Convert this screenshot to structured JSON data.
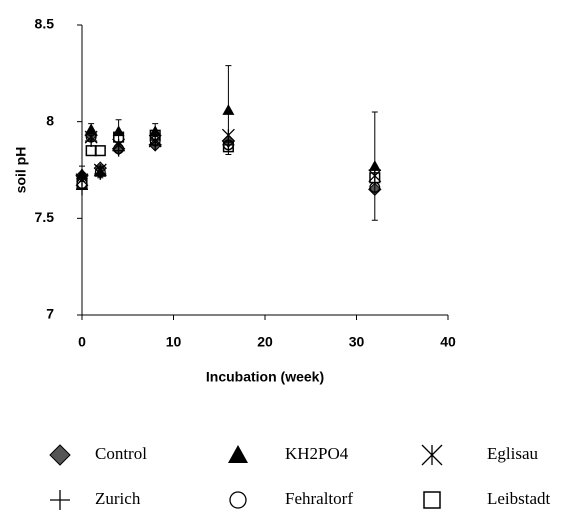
{
  "chart_data": {
    "type": "scatter",
    "x_label": "Incubation (week)",
    "y_label": "soil pH",
    "x": [
      0,
      1,
      2,
      4,
      8,
      16,
      32
    ],
    "xlim": [
      0,
      40
    ],
    "xticks": [
      0,
      10,
      20,
      30,
      40
    ],
    "ylim": [
      7,
      8.5
    ],
    "yticks": [
      7,
      7.5,
      8,
      8.5
    ],
    "series": [
      {
        "name": "Control",
        "marker": "diamond",
        "color": "#555555",
        "values": [
          7.72,
          7.93,
          7.76,
          7.86,
          7.88,
          7.9,
          7.65
        ]
      },
      {
        "name": "KH2PO4",
        "marker": "triangle",
        "color": "#000000",
        "values": [
          7.73,
          7.96,
          7.74,
          7.95,
          7.95,
          8.06,
          7.77
        ],
        "errors": [
          0.04,
          0.03,
          0.03,
          0.06,
          0.04,
          0.23,
          0.28
        ]
      },
      {
        "name": "Eglisau",
        "marker": "star",
        "color": "#000000",
        "values": [
          7.7,
          7.92,
          7.75,
          7.88,
          7.9,
          7.93,
          7.72
        ]
      },
      {
        "name": "Zurich",
        "marker": "plus",
        "color": "#000000",
        "values": [
          7.65,
          7.9,
          7.73,
          7.85,
          7.88,
          7.88,
          7.75
        ]
      },
      {
        "name": "Fehraltorf",
        "marker": "circle",
        "color": "#000000",
        "values": [
          7.68,
          7.92,
          7.74,
          7.86,
          7.9,
          7.88,
          7.66
        ]
      },
      {
        "name": "Leibstadt",
        "marker": "square",
        "color": "#000000",
        "values": [
          7.68,
          7.85,
          7.85,
          7.92,
          7.93,
          7.87,
          7.71
        ]
      }
    ]
  }
}
